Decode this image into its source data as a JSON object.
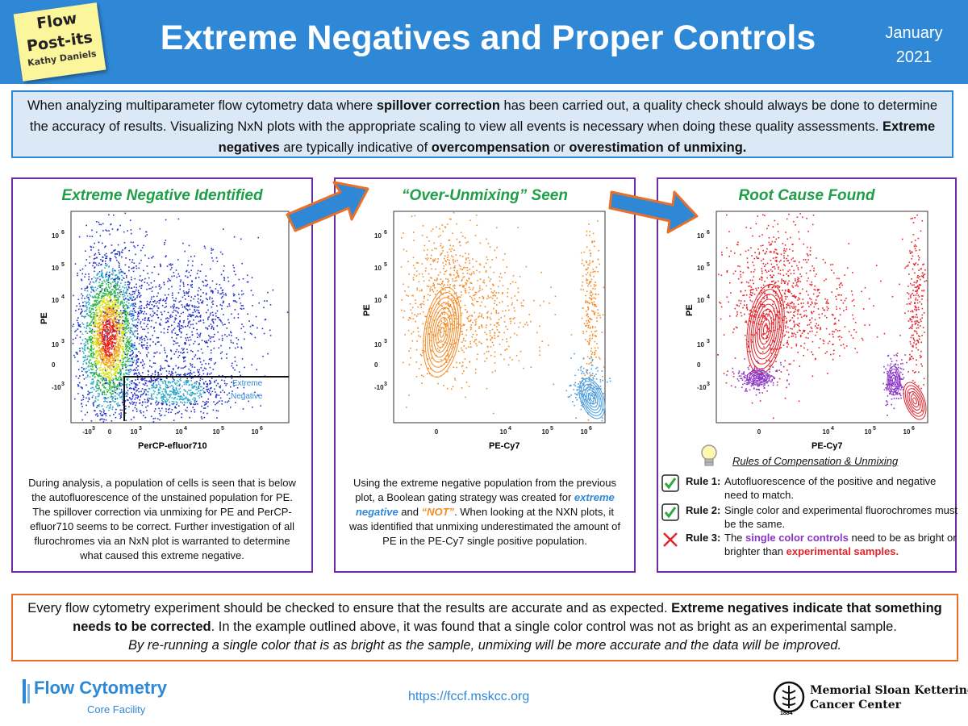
{
  "header": {
    "postit": {
      "line1": "Flow",
      "line2": "Post-its",
      "line3": "Kathy Daniels"
    },
    "title": "Extreme Negatives and Proper Controls",
    "month": "January",
    "year": "2021"
  },
  "intro": {
    "p1": "When analyzing multiparameter flow cytometry data where ",
    "b1": "spillover correction",
    "p2": " has been carried out, a quality check should always be done to determine the accuracy of results. Visualizing NxN plots with the appropriate scaling to view all events is necessary when doing these quality assessments. ",
    "b2": "Extreme negatives",
    "p3": " are typically indicative of ",
    "b3": "overcompensation",
    "p4": " or ",
    "b4": "overestimation of unmixing."
  },
  "panels": [
    {
      "title": "Extreme Negative Identified",
      "xlabel": "PerCP-efluor710",
      "ylabel": "PE",
      "gate_label_1": "Extreme",
      "gate_label_2": "Negative",
      "text": "During analysis, a population of cells is seen that is below the autofluorescence of the unstained population for PE. The spillover correction via unmixing for PE and PerCP-efluor710 seems to be correct. Further investigation of all flurochromes via an NxN plot is warranted to determine what caused this extreme negative."
    },
    {
      "title": "“Over-Unmixing” Seen",
      "xlabel": "PE-Cy7",
      "ylabel": "PE",
      "text_a": "Using the extreme negative population from the previous plot, a Boolean gating strategy was created for ",
      "text_em1": "extreme negative",
      "text_b": " and ",
      "text_em2": "“NOT”",
      "text_c": ".  When looking at the NXN plots, it was identified that unmixing underestimated the amount of PE in the PE-Cy7 single positive population."
    },
    {
      "title": "Root Cause Found",
      "xlabel": "PE-Cy7",
      "ylabel": "PE"
    }
  ],
  "axis_ticks": {
    "y": [
      "10",
      "10",
      "10",
      "10",
      "0",
      "-10"
    ],
    "y_exp": [
      "6",
      "5",
      "4",
      "3",
      "",
      "3"
    ],
    "x1": [
      "-10",
      "0",
      "10",
      "10",
      "10",
      "10"
    ],
    "x1_exp": [
      "3",
      "",
      "3",
      "4",
      "5",
      "6"
    ],
    "x2": [
      "0",
      "10",
      "10",
      "10"
    ],
    "x2_exp": [
      "",
      "4",
      "5",
      "6"
    ]
  },
  "rules": {
    "title": "Rules of Compensation & Unmixing",
    "items": [
      {
        "label": "Rule 1:",
        "text": "Autofluorescence of the positive and negative need to match.",
        "status": "check"
      },
      {
        "label": "Rule 2:",
        "text": "Single color and experimental fluorochromes must be the same.",
        "status": "check"
      },
      {
        "label": "Rule 3:",
        "text_a": "The ",
        "text_purple": "single color controls",
        "text_b": " need to be as bright or brighter than ",
        "text_red": "experimental samples.",
        "status": "cross"
      }
    ]
  },
  "bottom": {
    "a": "Every flow cytometry experiment should be checked to ensure that the results are accurate and as expected. ",
    "b": "Extreme negatives indicate that something needs to be corrected",
    "c": ". In the example outlined above, it was found that a single color control was not as bright as an experimental sample.",
    "d": "By re-running a single color that is as bright as the sample, unmixing will be more accurate and the data will be improved."
  },
  "footer": {
    "org": "Flow Cytometry",
    "org_sub": "Core Facility",
    "url": "https://fccf.mskcc.org",
    "msk_line1": "Memorial Sloan Kettering",
    "msk_line2": "Cancer Center",
    "msk_year": "1884"
  },
  "colors": {
    "header": "#2f88d6",
    "panel_border": "#6c2ea0",
    "title_green": "#1f9e48",
    "arrow_fill": "#2f88d6",
    "arrow_edge": "#e8702a",
    "orange": "#f28c28",
    "blue_pop": "#4a9de0",
    "red_pop": "#e3242b",
    "purple_pop": "#8b35c7"
  }
}
